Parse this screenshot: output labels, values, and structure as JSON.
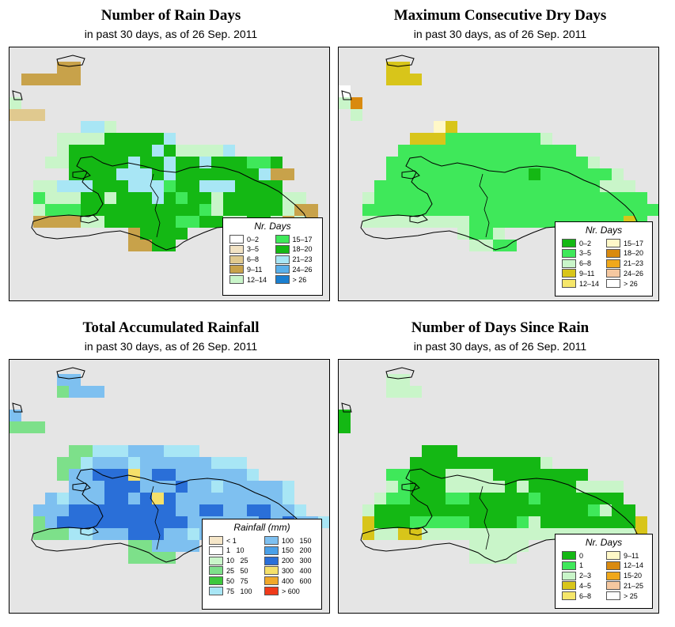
{
  "panels": [
    {
      "title": "Number of Rain Days",
      "subtitle": "in past 30 days, as of  26 Sep. 2011",
      "legend_title": "Nr. Days",
      "legend": [
        {
          "label": "0–2",
          "color": "#ffffff"
        },
        {
          "label": "3–5",
          "color": "#f2e3c4"
        },
        {
          "label": "6–8",
          "color": "#e0c98f"
        },
        {
          "label": "9–11",
          "color": "#c8a24a"
        },
        {
          "label": "12–14",
          "color": "#c9f5c9"
        },
        {
          "label": "15–17",
          "color": "#3fe85a"
        },
        {
          "label": "18–20",
          "color": "#14b814"
        },
        {
          "label": "21–23",
          "color": "#a8e6f5"
        },
        {
          "label": "24–26",
          "color": "#5ab0ea"
        },
        {
          "label": "> 26",
          "color": "#1a7fd0"
        }
      ]
    },
    {
      "title": "Maximum Consecutive Dry Days",
      "subtitle": "in past 30 days, as of  26 Sep. 2011",
      "legend_title": "Nr. Days",
      "legend": [
        {
          "label": "0–2",
          "color": "#14b814"
        },
        {
          "label": "3–5",
          "color": "#3fe85a"
        },
        {
          "label": "6–8",
          "color": "#c9f5c9"
        },
        {
          "label": "9–11",
          "color": "#d8c51a"
        },
        {
          "label": "12–14",
          "color": "#f5e66a"
        },
        {
          "label": "15–17",
          "color": "#fff8c8"
        },
        {
          "label": "18–20",
          "color": "#d98a0f"
        },
        {
          "label": "21–23",
          "color": "#f0a81a"
        },
        {
          "label": "24–26",
          "color": "#f5c8a0"
        },
        {
          "label": "> 26",
          "color": "#ffffff"
        }
      ]
    },
    {
      "title": "Total Accumulated Rainfall",
      "subtitle": "in past 30 days, as of  26 Sep. 2011",
      "legend_title": "Rainfall (mm)",
      "legend": [
        {
          "label": "< 1",
          "color": "#f5e6c8"
        },
        {
          "label": "1   10",
          "color": "#ffffff"
        },
        {
          "label": "10   25",
          "color": "#c9f5c9"
        },
        {
          "label": "25   50",
          "color": "#7de08a"
        },
        {
          "label": "50   75",
          "color": "#3cc83c"
        },
        {
          "label": "75   100",
          "color": "#a8e6f5"
        },
        {
          "label": "100   150",
          "color": "#7ec0f0"
        },
        {
          "label": "150   200",
          "color": "#4aa0e8"
        },
        {
          "label": "200   300",
          "color": "#2a6fd8"
        },
        {
          "label": "300   400",
          "color": "#f5e06a"
        },
        {
          "label": "400   600",
          "color": "#f0a82a"
        },
        {
          "label": "> 600",
          "color": "#f03a1a"
        }
      ]
    },
    {
      "title": "Number of Days Since Rain",
      "subtitle": "in past 30 days, as of  26 Sep. 2011",
      "legend_title": "Nr. Days",
      "legend": [
        {
          "label": "0",
          "color": "#14b814"
        },
        {
          "label": "1",
          "color": "#3fe85a"
        },
        {
          "label": "2–3",
          "color": "#c9f5c9"
        },
        {
          "label": "4–5",
          "color": "#d8c51a"
        },
        {
          "label": "6–8",
          "color": "#f5e66a"
        },
        {
          "label": "9–11",
          "color": "#fff8c8"
        },
        {
          "label": "12–14",
          "color": "#d98a0f"
        },
        {
          "label": "15-20",
          "color": "#f0a81a"
        },
        {
          "label": "21–25",
          "color": "#f5c8a0"
        },
        {
          "label": "> 25",
          "color": "#ffffff"
        }
      ]
    }
  ],
  "grids": [
    [
      "...........................",
      "....cc.....................",
      ".ccccc.....................",
      "............................",
      "g..........................",
      "bbb........................",
      "......rrg..................",
      "....ggggdddddr.............",
      "....gdddddddrdggggr........",
      "...ggdddddaddrddrdddlld...",
      ".....ddddaaadrdddddddrcc...",
      "..ggrrrdddaaalddrrrdddd....",
      "..lgggddgdddadlddgdddddgg.",
      "..glllddddddddddlgdddddgcc",
      "..ccccggddddddllddggddgcgc",
      "..........cdddd...........",
      "..........ccdd............",
      "............................",
      "...........................",
      "..........................."
    ],
    [
      "...........................",
      "....yy.....................",
      "....yyy....................",
      "w..........................",
      "lo.........................",
      ".l.....................",
      "........vy.................",
      "......yyyggggggggl.........",
      ".....ggggggggggggggg.......",
      "....gggggggggggggggggl.....",
      "....ggggggggggggGggggggl...",
      "...ggggggggggggggggggglll..",
      "..lggggggggggggggggggggggg.",
      "..ggggggggggggggggggggggggg",
      "..lllllllllgggggggggggggyg.",
      "..........lggl.............",
      "...........llgg............",
      "...........................",
      "...........................",
      "..........................."
    ],
    [
      "...........................",
      "....bb.....................",
      "....gbbb...................",
      "...........................",
      "b..........................",
      "ggg........................",
      "...........................",
      ".....ggsssbbbsss...........",
      "....ggsbbbsbbbbbbsss.......",
      "....gbbBBBybBBbbbbbbs......",
      ".....bbbBBBbbbBbbsbbbbbs...",
      "...bsbbbBBbByBbbbbbbbbbs...",
      "..bbbBBBBBBBBBbbBBbbBBbbs..",
      "..gbBBBBBBBBBBBbbbbbbBbBbbs",
      "..gggssbbbBBBbbsbbbbbbbbs..",
      "..........ggbbbb...........",
      "..........gggg.............",
      "...........................",
      "...........................",
      "..........................."
    ],
    [
      "...........................",
      "....ll.....................",
      "....lll....................",
      "...........................",
      "d..........................",
      "d..........................",
      "...........................",
      ".......ddd.................",
      "......dddddddddddl.........",
      "....ggdddlllldddddddd......",
      "....lgdddllllldlddddllll...",
      "...lggdddggdddddgddddddd...",
      "..lddddddddddddddddddgldd..",
      "..ydddgggggddddglddddddddy.",
      "..yllyylllllllllllllllllly.",
      "...........lllll...........",
      "...........llll............",
      "...........................",
      "...........................",
      "..........................."
    ]
  ],
  "grid_colors": [
    {
      "g": "#c9f5c9",
      "l": "#3fe85a",
      "d": "#14b814",
      "c": "#c8a24a",
      "b": "#e0c98f",
      "r": "#a8e6f5",
      "a": "#a8e6f5"
    },
    {
      "g": "#3fe85a",
      "G": "#14b814",
      "l": "#c9f5c9",
      "y": "#d8c51a",
      "o": "#d98a0f",
      "w": "#ffffff",
      "v": "#fff8c8"
    },
    {
      "g": "#7de08a",
      "s": "#a8e6f5",
      "b": "#7ec0f0",
      "B": "#2a6fd8",
      "y": "#f5e06a"
    },
    {
      "d": "#14b814",
      "g": "#3fe85a",
      "l": "#c9f5c9",
      "y": "#d8c51a"
    }
  ]
}
